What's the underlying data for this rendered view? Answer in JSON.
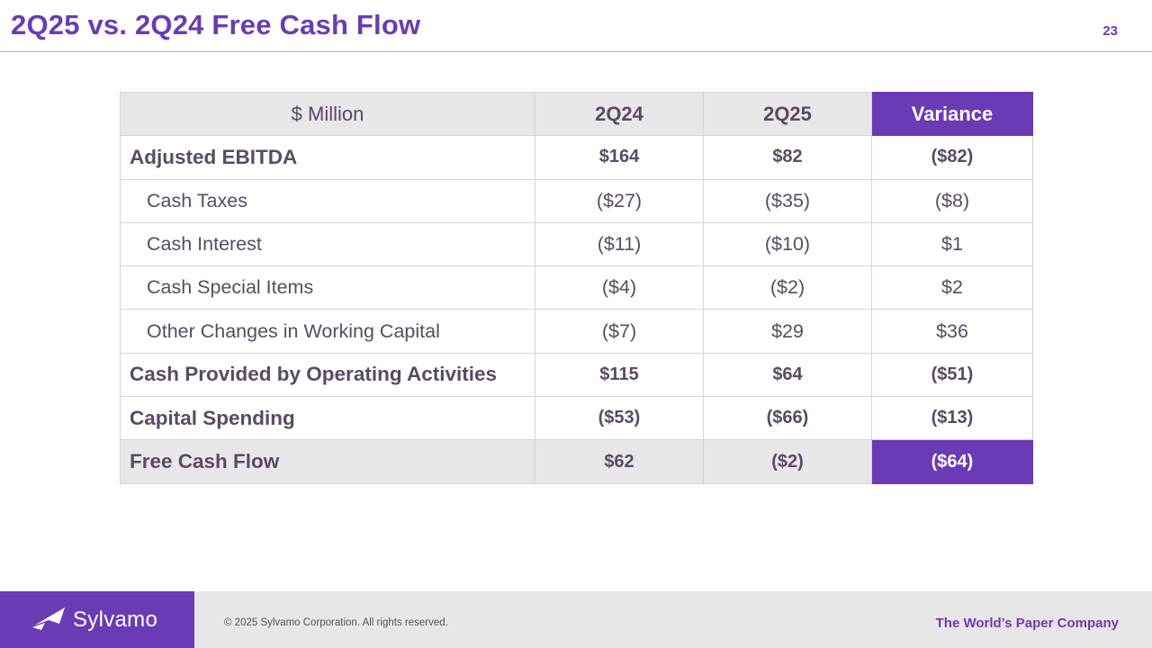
{
  "slide": {
    "title": "2Q25 vs. 2Q24 Free Cash Flow",
    "page_number": "23"
  },
  "table": {
    "headers": [
      "$ Million",
      "2Q24",
      "2Q25",
      "Variance"
    ],
    "rows": [
      {
        "label": "Adjusted EBITDA",
        "q24": "$164",
        "q25": "$82",
        "variance": "($82)"
      },
      {
        "label": "Cash Taxes",
        "q24": "($27)",
        "q25": "($35)",
        "variance": "($8)"
      },
      {
        "label": "Cash Interest",
        "q24": "($11)",
        "q25": "($10)",
        "variance": "$1"
      },
      {
        "label": "Cash Special Items",
        "q24": "($4)",
        "q25": "($2)",
        "variance": "$2"
      },
      {
        "label": "Other Changes in Working Capital",
        "q24": "($7)",
        "q25": "$29",
        "variance": "$36"
      },
      {
        "label": "Cash Provided by Operating Activities",
        "q24": "$115",
        "q25": "$64",
        "variance": "($51)"
      },
      {
        "label": "Capital Spending",
        "q24": "($53)",
        "q25": "($66)",
        "variance": "($13)"
      },
      {
        "label": "Free Cash Flow",
        "q24": "$62",
        "q25": "($2)",
        "variance": "($64)"
      }
    ]
  },
  "footer": {
    "logo_text": "Sylvamo",
    "copyright": "© 2025 Sylvamo Corporation. All rights reserved.",
    "tagline": "The World’s Paper Company"
  },
  "colors": {
    "brand_purple": "#6a3bb5",
    "header_gray": "#e7e7e7",
    "text": "#5a4a63"
  }
}
